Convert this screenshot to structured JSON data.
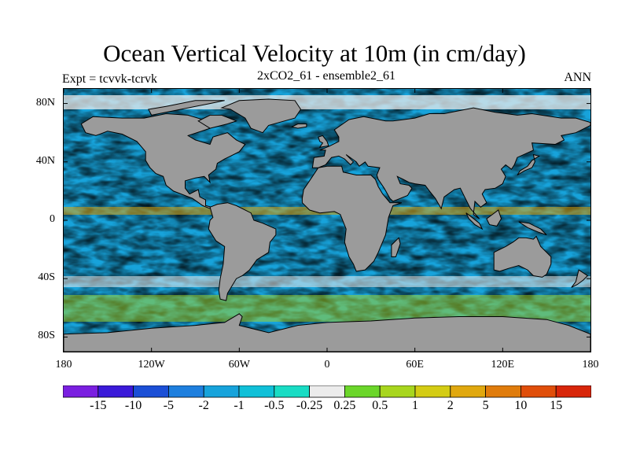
{
  "title": "Ocean Vertical Velocity at 10m (in cm/day)",
  "experiment_label": "Expt = tcvvk-tcrvk",
  "run_label": "2xCO2_61 - ensemble2_61",
  "period_label": "ANN",
  "map": {
    "projection": "cylindrical-equidistant",
    "lon_range": [
      -180,
      180
    ],
    "lat_range": [
      -90,
      90
    ],
    "land_color": "#9b9b9b",
    "coastline_color": "#000000"
  },
  "y_ticks": [
    {
      "lat": 80,
      "label": "80N"
    },
    {
      "lat": 40,
      "label": "40N"
    },
    {
      "lat": 0,
      "label": "0"
    },
    {
      "lat": -40,
      "label": "40S"
    },
    {
      "lat": -80,
      "label": "80S"
    }
  ],
  "x_ticks": [
    {
      "lon": -180,
      "label": "180"
    },
    {
      "lon": -120,
      "label": "120W"
    },
    {
      "lon": -60,
      "label": "60W"
    },
    {
      "lon": 0,
      "label": "0"
    },
    {
      "lon": 60,
      "label": "60E"
    },
    {
      "lon": 120,
      "label": "120E"
    },
    {
      "lon": 180,
      "label": "180"
    }
  ],
  "colorbar": {
    "colors": [
      "#7a1fe0",
      "#3b1ad9",
      "#1b4fd6",
      "#1e7fde",
      "#17a3db",
      "#10c0d8",
      "#19dcc4",
      "#ececec",
      "#6bd62a",
      "#a8d61e",
      "#d4cc14",
      "#e0a80f",
      "#e07c0c",
      "#e04e0a",
      "#d8260a"
    ],
    "labels": [
      "-15",
      "-10",
      "-5",
      "-2",
      "-1",
      "-0.5",
      "-0.25",
      "0.25",
      "0.5",
      "1",
      "2",
      "5",
      "10",
      "15"
    ]
  }
}
